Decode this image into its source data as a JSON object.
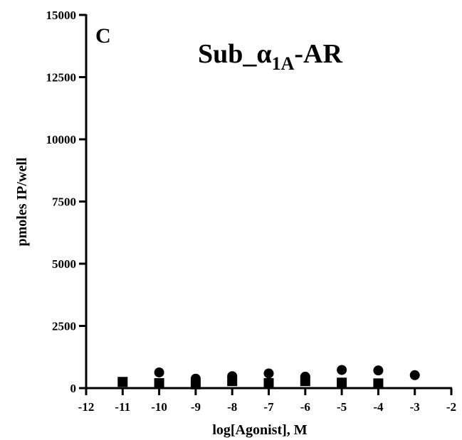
{
  "chart_data": {
    "type": "scatter",
    "panel_label": "C",
    "title": {
      "prefix": "Sub_",
      "greek": "α",
      "subscript": "1A",
      "suffix": "-AR"
    },
    "xlabel": "log[Agonist], M",
    "ylabel": "pmoles IP/well",
    "xlim": [
      -12,
      -2
    ],
    "ylim": [
      0,
      15000
    ],
    "xticks": [
      -12,
      -11,
      -10,
      -9,
      -8,
      -7,
      -6,
      -5,
      -4,
      -3,
      -2
    ],
    "yticks": [
      0,
      2500,
      5000,
      7500,
      10000,
      12500,
      15000
    ],
    "grid": false,
    "series": [
      {
        "marker": "circle",
        "color": "#000000",
        "x": [
          -10,
          -9,
          -8,
          -7,
          -6,
          -5,
          -4,
          -3
        ],
        "y": [
          630,
          380,
          480,
          590,
          460,
          730,
          710,
          520
        ]
      },
      {
        "marker": "square",
        "color": "#000000",
        "x": [
          -11,
          -10,
          -9,
          -8,
          -7,
          -6,
          -5,
          -4
        ],
        "y": [
          250,
          200,
          150,
          280,
          200,
          280,
          220,
          190
        ]
      }
    ]
  }
}
